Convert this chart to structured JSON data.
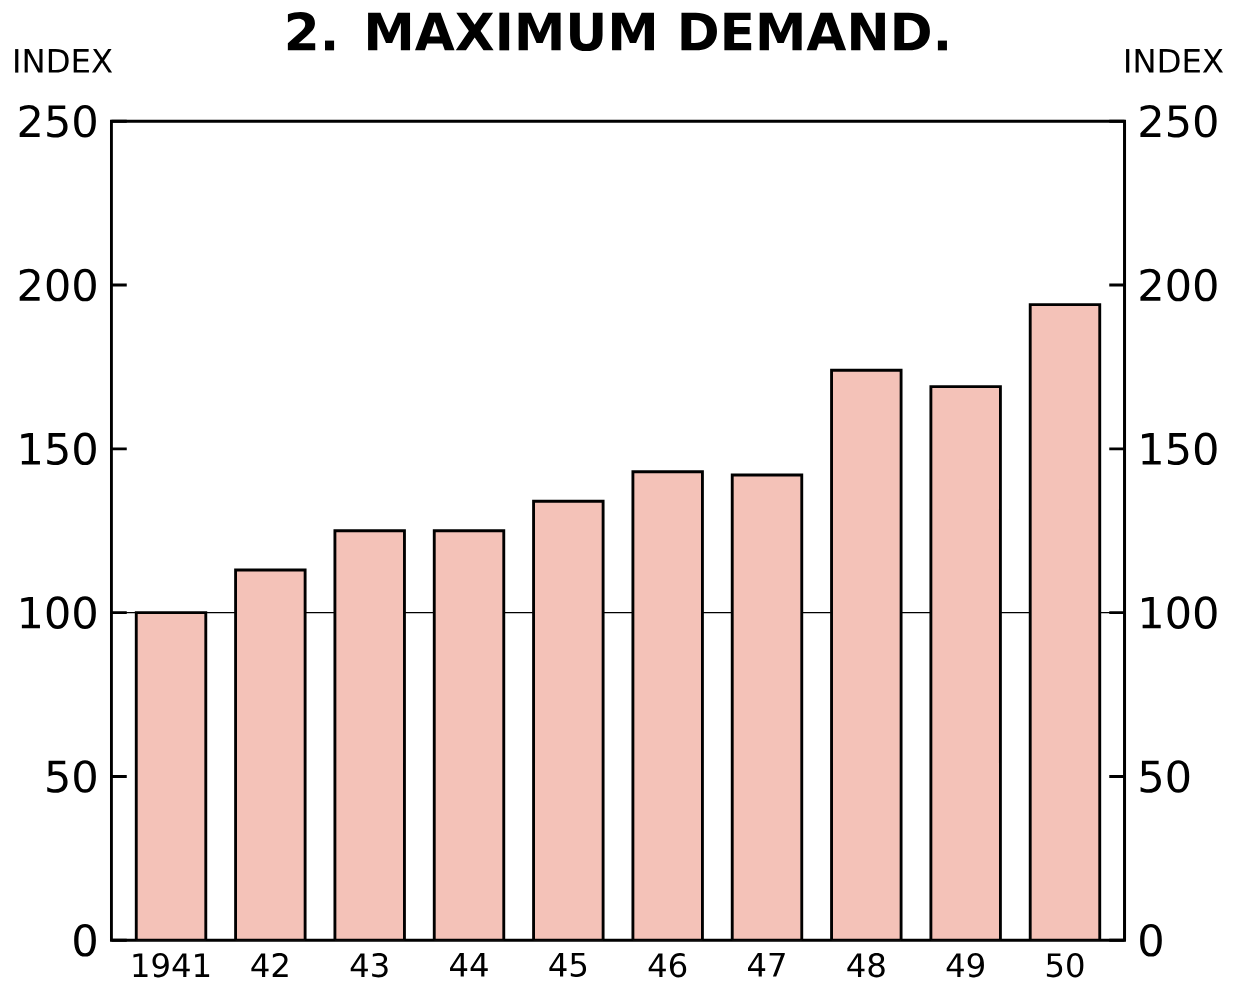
{
  "chart_data": {
    "type": "bar",
    "title": "2. MAXIMUM DEMAND.",
    "ylabel": "INDEX",
    "y2label": "INDEX",
    "categories": [
      "1941",
      "42",
      "43",
      "44",
      "45",
      "46",
      "47",
      "48",
      "49",
      "50"
    ],
    "values": [
      100,
      113,
      125,
      125,
      134,
      143,
      142,
      174,
      169,
      194
    ],
    "color": "#f4c2b8",
    "ylim": [
      0,
      250
    ],
    "yticks": [
      0,
      50,
      100,
      150,
      200,
      250
    ],
    "y2lim": [
      0,
      250
    ],
    "y2ticks": [
      0,
      50,
      100,
      150,
      200,
      250
    ],
    "ref_lines": [
      {
        "axis": "y",
        "value": 100,
        "color": "#000000"
      }
    ],
    "grid": false
  }
}
